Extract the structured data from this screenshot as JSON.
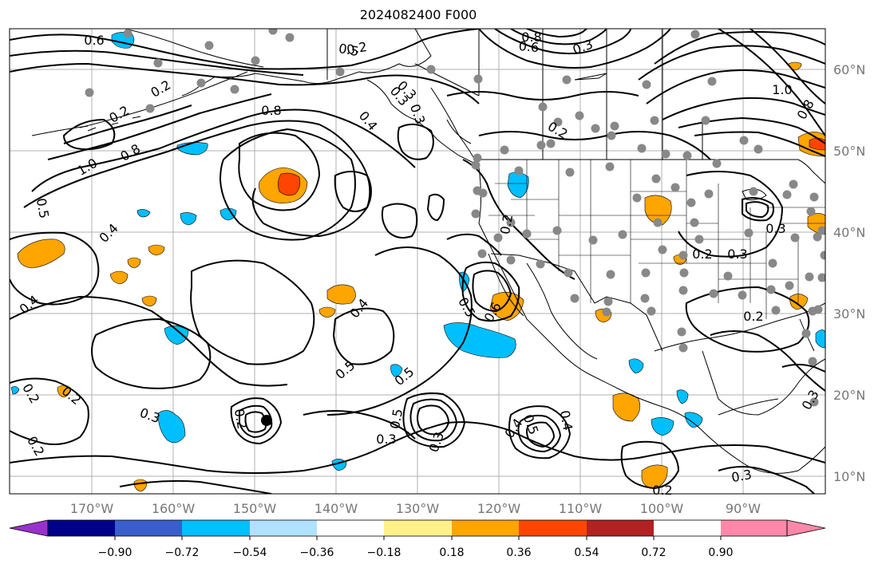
{
  "title": "2024082400 F000",
  "longitude_labels": [
    "170°W",
    "160°W",
    "150°W",
    "140°W",
    "130°W",
    "120°W",
    "110°W",
    "100°W",
    "90°W"
  ],
  "latitude_labels": [
    "60°N",
    "50°N",
    "40°N",
    "30°N",
    "20°N",
    "10°N"
  ],
  "colorbar": {
    "tick_labels": [
      "−0.90",
      "−0.72",
      "−0.54",
      "−0.36",
      "−0.18",
      "0.18",
      "0.36",
      "0.54",
      "0.72",
      "0.90"
    ],
    "colors": [
      "#9932cc",
      "#00008b",
      "#3a5fcd",
      "#00bfff",
      "#b0e2ff",
      "#ffffff",
      "#fff08a",
      "#ffa500",
      "#ff4500",
      "#b22222",
      "#ff88aa"
    ]
  },
  "contour_labels": [
    "0.6",
    "0.5",
    "0.2",
    "0.2",
    "0.8",
    "0.4",
    "0.3",
    "0.3",
    "0.3",
    "0.8",
    "0.6",
    "0.3",
    "0.2",
    "1.0",
    "0.8",
    "1.0",
    "0.8",
    "0.5",
    "0.4",
    "0.2",
    "0.6",
    "0.5",
    "0.3",
    "0.2",
    "0.3",
    "0.4",
    "0.2",
    "0.5",
    "0.4",
    "0.5",
    "0.5",
    "0.3",
    "0.4",
    "0.5",
    "0.4",
    "0.3",
    "0.2",
    "0.2",
    "0.2",
    "0.3",
    "0.3",
    "0.2",
    "0.2",
    "0.2",
    "0.3"
  ],
  "colors": {
    "orange": "#ffa500",
    "red": "#ff4500",
    "sky_blue": "#00bfff",
    "station_gray": "#888888",
    "grid_gray": "#b0b0b0"
  }
}
